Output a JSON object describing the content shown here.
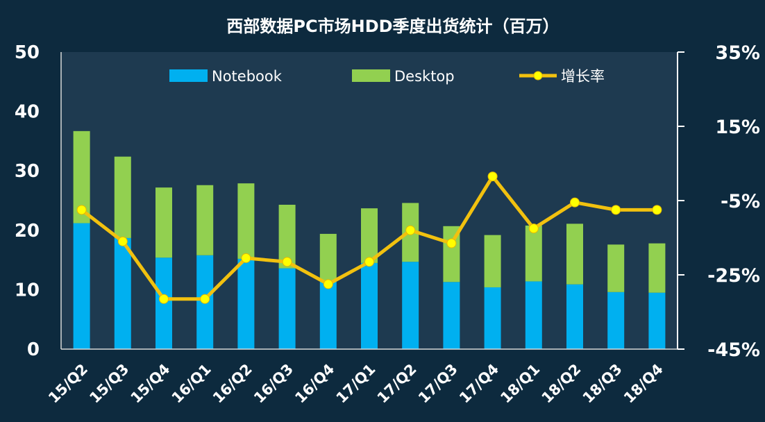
{
  "chart_data": {
    "type": "bar",
    "title": "西部数据PC市场HDD季度出货统计（百万）",
    "categories": [
      "15/Q2",
      "15/Q3",
      "15/Q4",
      "16/Q1",
      "16/Q2",
      "16/Q3",
      "16/Q4",
      "17/Q1",
      "17/Q2",
      "17/Q3",
      "17/Q4",
      "18/Q1",
      "18/Q2",
      "18/Q3",
      "18/Q4"
    ],
    "stacked": true,
    "series": [
      {
        "name": "Notebook",
        "type": "bar",
        "color": "#00b0f0",
        "values": [
          21.2,
          18.7,
          15.4,
          15.8,
          15.2,
          13.6,
          11.4,
          14.5,
          14.7,
          11.3,
          10.4,
          11.4,
          10.9,
          9.6,
          9.5
        ]
      },
      {
        "name": "Desktop",
        "type": "bar",
        "color": "#92d050",
        "values": [
          15.5,
          13.7,
          11.8,
          11.8,
          12.7,
          10.7,
          8.0,
          9.2,
          9.9,
          9.4,
          8.8,
          9.4,
          10.2,
          8.0,
          8.3
        ]
      },
      {
        "name": "增长率",
        "type": "line",
        "axis": "right",
        "color": "#f2c10f",
        "marker_color": "#ffff00",
        "values": [
          -7.5,
          -16.0,
          -31.5,
          -31.5,
          -20.5,
          -21.5,
          -27.5,
          -21.5,
          -13.0,
          -16.5,
          1.5,
          -12.5,
          -5.5,
          -7.5,
          -7.5
        ]
      }
    ],
    "y_left": {
      "min": 0,
      "max": 50,
      "ticks": [
        0,
        10,
        20,
        30,
        40,
        50
      ]
    },
    "y_right": {
      "min": -45,
      "max": 35,
      "ticks": [
        -45,
        -25,
        -5,
        15,
        35
      ],
      "tick_labels": [
        "-45%",
        "-25%",
        "-5%",
        "15%",
        "35%"
      ]
    },
    "legend_position": "top"
  }
}
